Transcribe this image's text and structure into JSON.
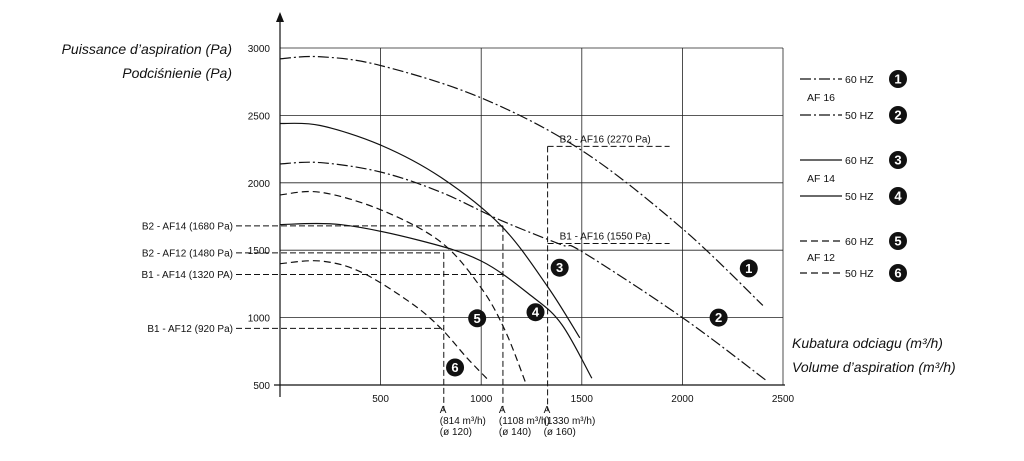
{
  "chart_data": {
    "type": "line",
    "title": "",
    "ylabel": [
      "Puissance d’aspiration (Pa)",
      "Podciśnienie (Pa)"
    ],
    "xlabel": [
      "Kubatura odciagu (m³/h)",
      "Volume d’aspiration (m³/h)"
    ],
    "xlim": [
      0,
      2500
    ],
    "ylim": [
      500,
      3000
    ],
    "xticks": [
      {
        "value": 500,
        "label": "500"
      },
      {
        "value": 1000,
        "label": "1000"
      },
      {
        "value": 1500,
        "label": "1500"
      },
      {
        "value": 2000,
        "label": "2000"
      },
      {
        "value": 2500,
        "label": "2500"
      }
    ],
    "yticks": [
      {
        "value": 500,
        "label": "500"
      },
      {
        "value": 1000,
        "label": "1000"
      },
      {
        "value": 1500,
        "label": "1500"
      },
      {
        "value": 2000,
        "label": "2000"
      },
      {
        "value": 2500,
        "label": "2500"
      },
      {
        "value": 3000,
        "label": "3000"
      }
    ],
    "grid": true,
    "series": [
      {
        "id": "1",
        "badge": "1",
        "style": "dashdot",
        "points": [
          [
            0,
            2920
          ],
          [
            200,
            2935
          ],
          [
            500,
            2870
          ],
          [
            1000,
            2630
          ],
          [
            1500,
            2240
          ],
          [
            2000,
            1660
          ],
          [
            2400,
            1090
          ]
        ]
      },
      {
        "id": "2",
        "badge": "2",
        "style": "dashdot",
        "points": [
          [
            0,
            2140
          ],
          [
            200,
            2150
          ],
          [
            500,
            2080
          ],
          [
            800,
            1930
          ],
          [
            1100,
            1720
          ],
          [
            1400,
            1540
          ],
          [
            1500,
            1490
          ],
          [
            2000,
            1000
          ],
          [
            2420,
            530
          ]
        ]
      },
      {
        "id": "3",
        "badge": "3",
        "style": "solid",
        "points": [
          [
            0,
            2440
          ],
          [
            200,
            2425
          ],
          [
            500,
            2280
          ],
          [
            800,
            2040
          ],
          [
            1100,
            1680
          ],
          [
            1330,
            1230
          ],
          [
            1490,
            850
          ]
        ]
      },
      {
        "id": "4",
        "badge": "4",
        "style": "solid",
        "points": [
          [
            0,
            1690
          ],
          [
            300,
            1690
          ],
          [
            700,
            1570
          ],
          [
            1000,
            1420
          ],
          [
            1250,
            1160
          ],
          [
            1400,
            950
          ],
          [
            1550,
            550
          ]
        ]
      },
      {
        "id": "5",
        "badge": "5",
        "style": "dashed",
        "points": [
          [
            0,
            1910
          ],
          [
            200,
            1930
          ],
          [
            500,
            1800
          ],
          [
            800,
            1560
          ],
          [
            1000,
            1220
          ],
          [
            1120,
            900
          ],
          [
            1220,
            520
          ]
        ]
      },
      {
        "id": "6",
        "badge": "6",
        "style": "dashed",
        "points": [
          [
            0,
            1400
          ],
          [
            200,
            1420
          ],
          [
            400,
            1340
          ],
          [
            650,
            1110
          ],
          [
            800,
            920
          ],
          [
            930,
            700
          ],
          [
            1040,
            530
          ]
        ]
      }
    ],
    "reference_lines": [
      {
        "label": "B2 - AF14 (1680 Pa)",
        "y": 1680,
        "x_to": 1108,
        "side": "left"
      },
      {
        "label": "B2 - AF12 (1480 Pa)",
        "y": 1480,
        "x_to": 814,
        "side": "left"
      },
      {
        "label": "B1 - AF14 (1320 PA)",
        "y": 1320,
        "x_to": 1108,
        "side": "left"
      },
      {
        "label": "B1 - AF12 (920 Pa)",
        "y": 920,
        "x_to": 814,
        "side": "left"
      },
      {
        "label": "B2 - AF16 (2270 Pa)",
        "y": 2270,
        "x_from": 1330,
        "side": "right"
      },
      {
        "label": "B1 - AF16 (1550 Pa)",
        "y": 1550,
        "x_from": 1330,
        "side": "right"
      }
    ],
    "vertical_markers": [
      {
        "x": 814,
        "y_top": 1480,
        "lines": [
          "A",
          "(814 m³/h)",
          "(ø 120)"
        ]
      },
      {
        "x": 1108,
        "y_top": 1680,
        "lines": [
          "A",
          "(1108 m³/h)",
          "(ø 140)"
        ]
      },
      {
        "x": 1330,
        "y_top": 2270,
        "lines": [
          "A",
          "(1330 m³/h)",
          "(ø 160)"
        ]
      }
    ],
    "badges_on_chart": [
      {
        "badge": "1",
        "x": 2330,
        "y": 1365
      },
      {
        "badge": "2",
        "x": 2180,
        "y": 1000
      },
      {
        "badge": "3",
        "x": 1390,
        "y": 1370
      },
      {
        "badge": "4",
        "x": 1270,
        "y": 1040
      },
      {
        "badge": "5",
        "x": 980,
        "y": 995
      },
      {
        "badge": "6",
        "x": 870,
        "y": 630
      }
    ],
    "legend": {
      "placement": "right",
      "groups": [
        {
          "label": "AF 16",
          "entries": [
            {
              "freq": "60 HZ",
              "badge": "1",
              "style": "dashdot"
            },
            {
              "freq": "50 HZ",
              "badge": "2",
              "style": "dashdot"
            }
          ]
        },
        {
          "label": "AF 14",
          "entries": [
            {
              "freq": "60 HZ",
              "badge": "3",
              "style": "solid"
            },
            {
              "freq": "50 HZ",
              "badge": "4",
              "style": "solid"
            }
          ]
        },
        {
          "label": "AF 12",
          "entries": [
            {
              "freq": "60 HZ",
              "badge": "5",
              "style": "dashed"
            },
            {
              "freq": "50 HZ",
              "badge": "6",
              "style": "dashed"
            }
          ]
        }
      ]
    }
  }
}
